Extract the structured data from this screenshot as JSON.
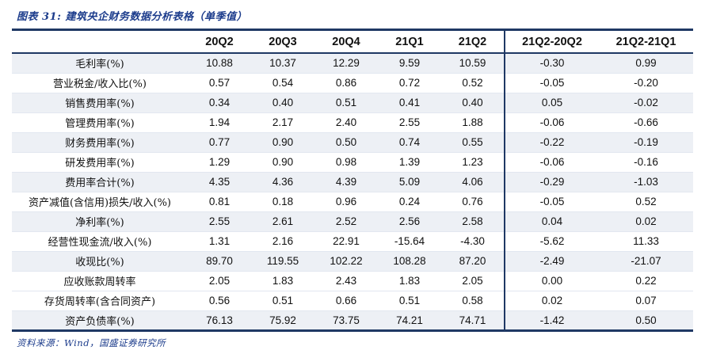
{
  "figure": {
    "title": "图表 31:  建筑央企财务数据分析表格（单季值）",
    "source": "资料来源：Wind，国盛证券研究所"
  },
  "colors": {
    "accent_navy": "#1F3864",
    "title_blue": "#1c3c8c",
    "stripe": "#EDF0F5"
  },
  "table": {
    "columns": [
      "20Q2",
      "20Q3",
      "20Q4",
      "21Q1",
      "21Q2",
      "21Q2-20Q2",
      "21Q2-21Q1"
    ],
    "rows": [
      {
        "label": "毛利率(%)",
        "values": [
          "10.88",
          "10.37",
          "12.29",
          "9.59",
          "10.59",
          "-0.30",
          "0.99"
        ]
      },
      {
        "label": "营业税金/收入比(%)",
        "values": [
          "0.57",
          "0.54",
          "0.86",
          "0.72",
          "0.52",
          "-0.05",
          "-0.20"
        ]
      },
      {
        "label": "销售费用率(%)",
        "values": [
          "0.34",
          "0.40",
          "0.51",
          "0.41",
          "0.40",
          "0.05",
          "-0.02"
        ]
      },
      {
        "label": "管理费用率(%)",
        "values": [
          "1.94",
          "2.17",
          "2.40",
          "2.55",
          "1.88",
          "-0.06",
          "-0.66"
        ]
      },
      {
        "label": "财务费用率(%)",
        "values": [
          "0.77",
          "0.90",
          "0.50",
          "0.74",
          "0.55",
          "-0.22",
          "-0.19"
        ]
      },
      {
        "label": "研发费用率(%)",
        "values": [
          "1.29",
          "0.90",
          "0.98",
          "1.39",
          "1.23",
          "-0.06",
          "-0.16"
        ]
      },
      {
        "label": "费用率合计(%)",
        "values": [
          "4.35",
          "4.36",
          "4.39",
          "5.09",
          "4.06",
          "-0.29",
          "-1.03"
        ]
      },
      {
        "label": "资产减值(含信用)损失/收入(%)",
        "values": [
          "0.81",
          "0.18",
          "0.96",
          "0.24",
          "0.76",
          "-0.05",
          "0.52"
        ]
      },
      {
        "label": "净利率(%)",
        "values": [
          "2.55",
          "2.61",
          "2.52",
          "2.56",
          "2.58",
          "0.04",
          "0.02"
        ]
      },
      {
        "label": "经营性现金流/收入(%)",
        "values": [
          "1.31",
          "2.16",
          "22.91",
          "-15.64",
          "-4.30",
          "-5.62",
          "11.33"
        ]
      },
      {
        "label": "收现比(%)",
        "values": [
          "89.70",
          "119.55",
          "102.22",
          "108.28",
          "87.20",
          "-2.49",
          "-21.07"
        ]
      },
      {
        "label": "应收账款周转率",
        "values": [
          "2.05",
          "1.83",
          "2.43",
          "1.83",
          "2.05",
          "0.00",
          "0.22"
        ]
      },
      {
        "label": "存货周转率(含合同资产)",
        "values": [
          "0.56",
          "0.51",
          "0.66",
          "0.51",
          "0.58",
          "0.02",
          "0.07"
        ]
      },
      {
        "label": "资产负债率(%)",
        "values": [
          "76.13",
          "75.92",
          "73.75",
          "74.21",
          "74.71",
          "-1.42",
          "0.50"
        ]
      }
    ]
  }
}
